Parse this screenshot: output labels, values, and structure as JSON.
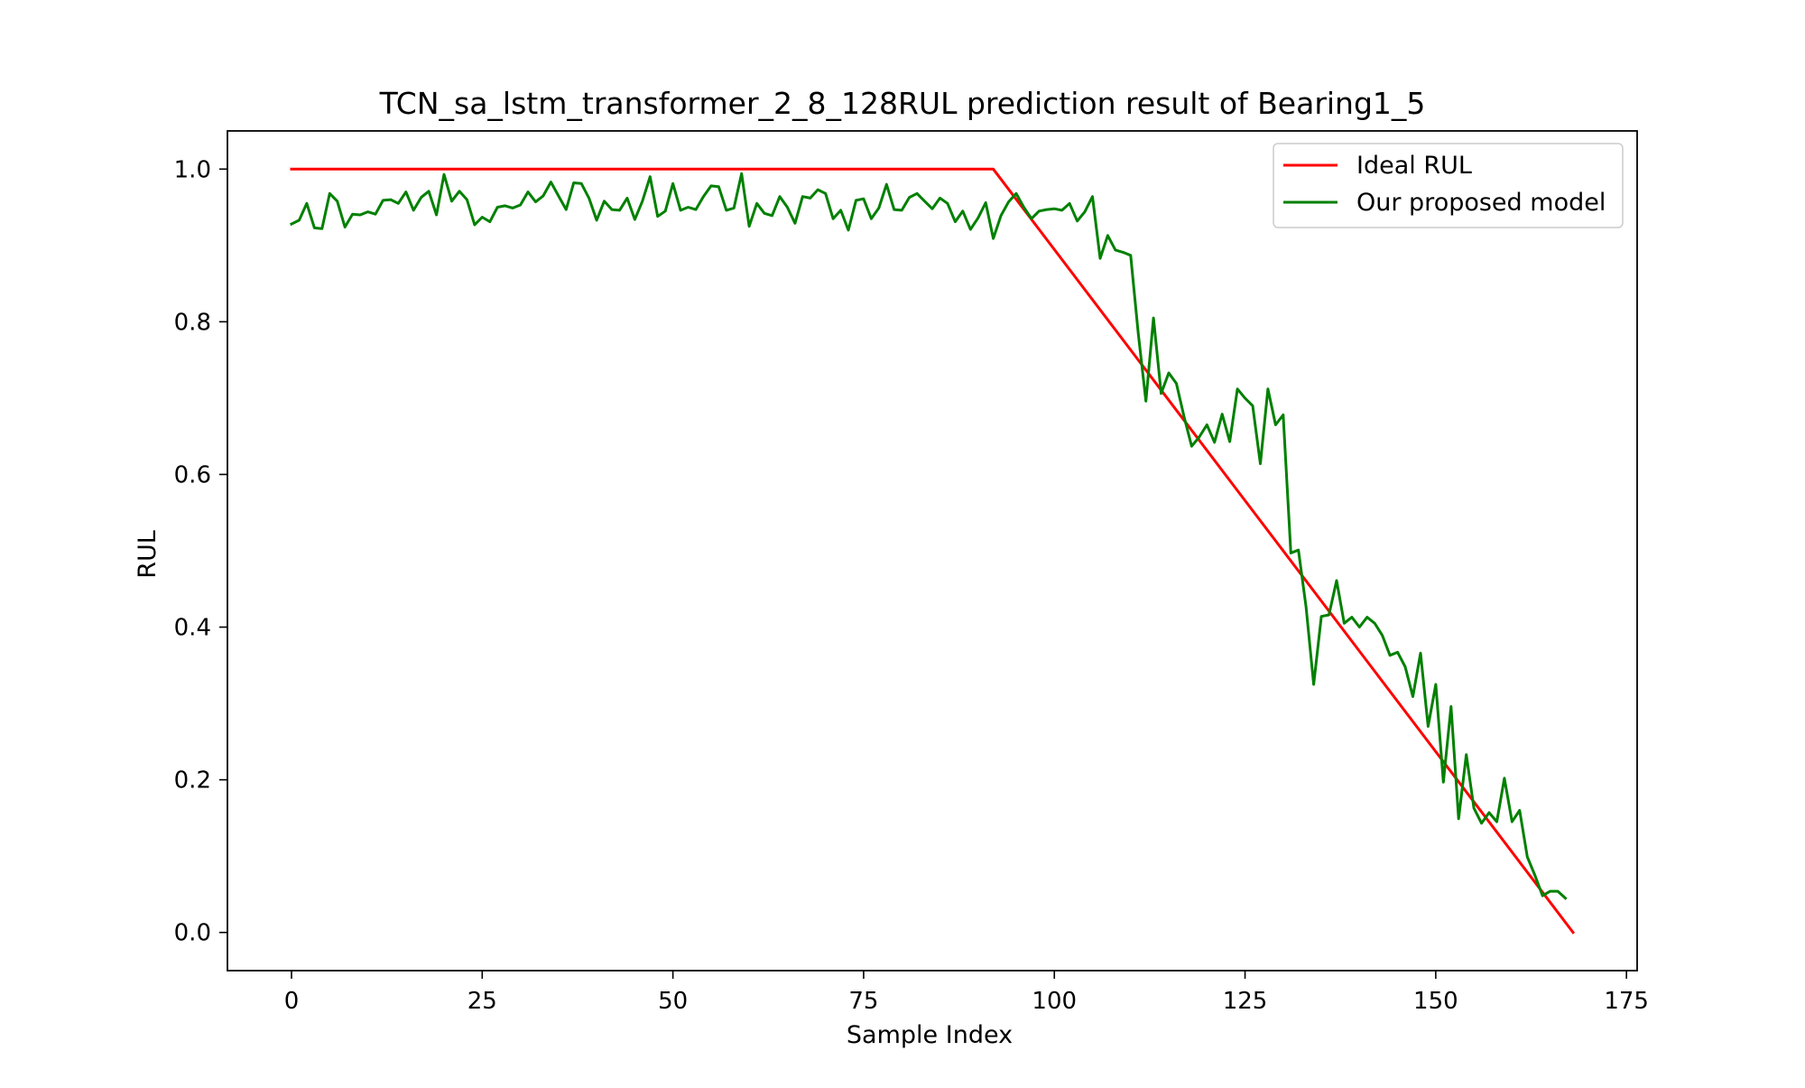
{
  "chart_data": {
    "type": "line",
    "title": "TCN_sa_lstm_transformer_2_8_128RUL prediction result of Bearing1_5",
    "xlabel": "Sample Index",
    "ylabel": "RUL",
    "xlim": [
      -8.4,
      176.4
    ],
    "ylim": [
      -0.05,
      1.05
    ],
    "xticks": [
      0,
      25,
      50,
      75,
      100,
      125,
      150,
      175
    ],
    "yticks": [
      0.0,
      0.2,
      0.4,
      0.6,
      0.8,
      1.0
    ],
    "xtick_labels": [
      "0",
      "25",
      "50",
      "75",
      "100",
      "125",
      "150",
      "175"
    ],
    "ytick_labels": [
      "0.0",
      "0.2",
      "0.4",
      "0.6",
      "0.8",
      "1.0"
    ],
    "grid": false,
    "legend_position": "top-right",
    "series": [
      {
        "name": "Ideal RUL",
        "color": "#ff0000",
        "x": [
          0,
          92,
          168
        ],
        "y": [
          1.0,
          1.0,
          0.0
        ]
      },
      {
        "name": "Our proposed model",
        "color": "#008000",
        "x_start": 0,
        "y": [
          0.928,
          0.933,
          0.955,
          0.923,
          0.922,
          0.968,
          0.958,
          0.924,
          0.941,
          0.94,
          0.944,
          0.941,
          0.959,
          0.96,
          0.955,
          0.97,
          0.946,
          0.963,
          0.971,
          0.94,
          0.993,
          0.958,
          0.971,
          0.96,
          0.927,
          0.937,
          0.931,
          0.95,
          0.952,
          0.949,
          0.953,
          0.97,
          0.957,
          0.965,
          0.983,
          0.965,
          0.947,
          0.982,
          0.981,
          0.962,
          0.933,
          0.958,
          0.947,
          0.946,
          0.962,
          0.934,
          0.958,
          0.99,
          0.938,
          0.945,
          0.981,
          0.946,
          0.95,
          0.947,
          0.964,
          0.978,
          0.977,
          0.946,
          0.949,
          0.994,
          0.925,
          0.955,
          0.942,
          0.939,
          0.964,
          0.95,
          0.929,
          0.964,
          0.962,
          0.973,
          0.968,
          0.935,
          0.946,
          0.92,
          0.959,
          0.961,
          0.935,
          0.949,
          0.98,
          0.947,
          0.946,
          0.963,
          0.968,
          0.958,
          0.948,
          0.962,
          0.955,
          0.931,
          0.945,
          0.921,
          0.936,
          0.956,
          0.909,
          0.939,
          0.957,
          0.968,
          0.95,
          0.935,
          0.945,
          0.947,
          0.948,
          0.946,
          0.955,
          0.932,
          0.944,
          0.964,
          0.883,
          0.913,
          0.894,
          0.891,
          0.887,
          0.785,
          0.696,
          0.805,
          0.706,
          0.733,
          0.719,
          0.676,
          0.637,
          0.649,
          0.665,
          0.642,
          0.679,
          0.643,
          0.712,
          0.7,
          0.69,
          0.614,
          0.712,
          0.665,
          0.678,
          0.497,
          0.501,
          0.426,
          0.325,
          0.414,
          0.416,
          0.461,
          0.405,
          0.413,
          0.4,
          0.413,
          0.405,
          0.389,
          0.363,
          0.367,
          0.348,
          0.309,
          0.366,
          0.27,
          0.325,
          0.197,
          0.296,
          0.149,
          0.233,
          0.163,
          0.143,
          0.157,
          0.145,
          0.202,
          0.145,
          0.16,
          0.099,
          0.075,
          0.048,
          0.054,
          0.054,
          0.045
        ]
      }
    ]
  }
}
